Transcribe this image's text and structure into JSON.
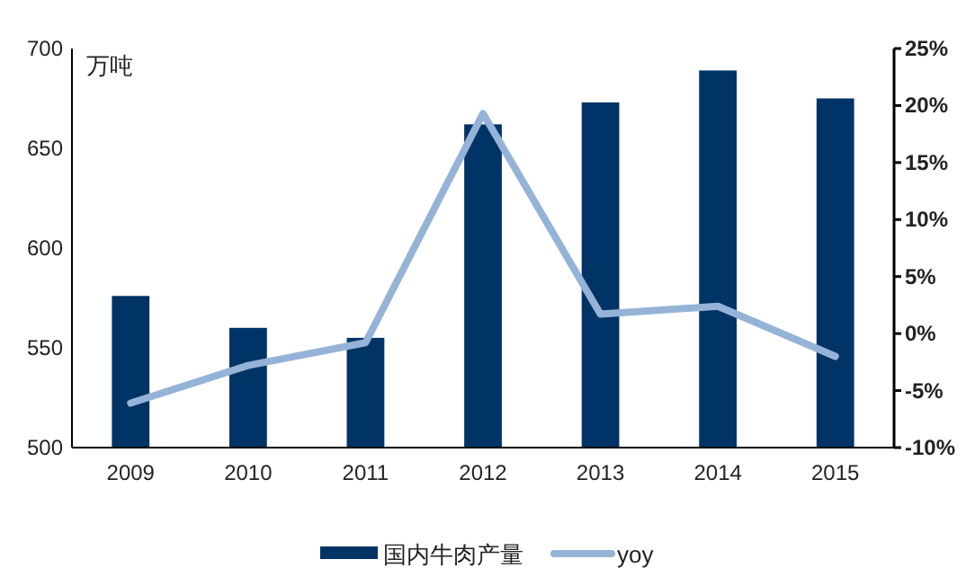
{
  "chart_data": {
    "type": "bar",
    "ylabel": "万吨",
    "categories": [
      "2009",
      "2010",
      "2011",
      "2012",
      "2013",
      "2014",
      "2015"
    ],
    "series": [
      {
        "name": "国内牛肉产量",
        "color": "#003366",
        "values": [
          576,
          560,
          555,
          662,
          673,
          689,
          675
        ]
      },
      {
        "name": "yoy",
        "type": "line",
        "axis": "y2",
        "color": "#95b3d7",
        "values": [
          -6.1,
          -2.8,
          -0.8,
          19.3,
          1.7,
          2.4,
          -2.0
        ]
      }
    ],
    "ylim": [
      500,
      700
    ],
    "yticks": [
      500,
      550,
      600,
      650,
      700
    ],
    "y2lim": [
      -10,
      25
    ],
    "y2ticks": [
      {
        "value": -10,
        "label": "-10%"
      },
      {
        "value": -5,
        "label": "-5%"
      },
      {
        "value": 0,
        "label": "0%"
      },
      {
        "value": 5,
        "label": "5%"
      },
      {
        "value": 10,
        "label": "10%"
      },
      {
        "value": 15,
        "label": "15%"
      },
      {
        "value": 20,
        "label": "20%"
      },
      {
        "value": 25,
        "label": "25%"
      }
    ],
    "grid": false,
    "legend": "bottom",
    "marker": "none",
    "line_style": "solid"
  }
}
